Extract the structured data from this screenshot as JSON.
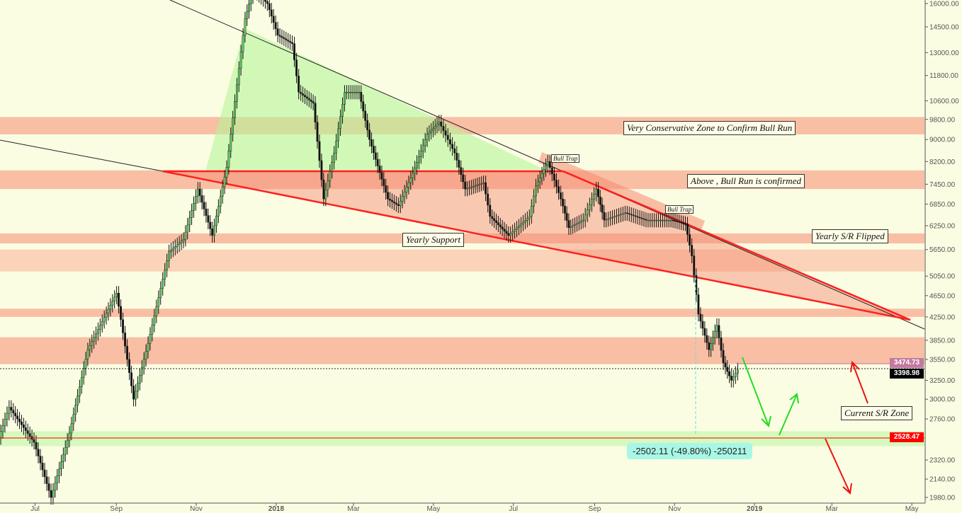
{
  "chart_data": {
    "type": "candlestick",
    "yscale": "log",
    "ylim": [
      1950,
      16500
    ],
    "xlim": [
      "2017-06-01",
      "2019-05-15"
    ],
    "y_ticks": [
      "16000.00",
      "14500.00",
      "13000.00",
      "11800.00",
      "10600.00",
      "9800.00",
      "9000.00",
      "8200.00",
      "7450.00",
      "6850.00",
      "6250.00",
      "5650.00",
      "5050.00",
      "4650.00",
      "4250.00",
      "3850.00",
      "3550.00",
      "3250.00",
      "3000.00",
      "2760.00",
      "2320.00",
      "2140.00",
      "1980.00"
    ],
    "x_ticks": [
      {
        "label": "Jul",
        "date": "2017-07-01"
      },
      {
        "label": "Sep",
        "date": "2017-09-01"
      },
      {
        "label": "Nov",
        "date": "2017-11-01"
      },
      {
        "label": "2018",
        "date": "2018-01-01"
      },
      {
        "label": "Mar",
        "date": "2018-03-01"
      },
      {
        "label": "May",
        "date": "2018-05-01"
      },
      {
        "label": "Jul",
        "date": "2018-07-01"
      },
      {
        "label": "Sep",
        "date": "2018-09-01"
      },
      {
        "label": "Nov",
        "date": "2018-11-01"
      },
      {
        "label": "2019",
        "date": "2019-01-01"
      },
      {
        "label": "Mar",
        "date": "2019-03-01"
      },
      {
        "label": "May",
        "date": "2019-05-01"
      }
    ],
    "price": [
      [
        "2017-06-04",
        2550
      ],
      [
        "2017-06-12",
        2900
      ],
      [
        "2017-07-01",
        2500
      ],
      [
        "2017-07-14",
        1980
      ],
      [
        "2017-07-28",
        2600
      ],
      [
        "2017-08-11",
        3700
      ],
      [
        "2017-09-02",
        4700
      ],
      [
        "2017-09-15",
        3000
      ],
      [
        "2017-09-26",
        3800
      ],
      [
        "2017-10-12",
        5600
      ],
      [
        "2017-10-23",
        5900
      ],
      [
        "2017-11-03",
        7300
      ],
      [
        "2017-11-14",
        6000
      ],
      [
        "2017-11-25",
        8000
      ],
      [
        "2017-12-09",
        15000
      ],
      [
        "2017-12-15",
        17000
      ],
      [
        "2017-12-26",
        16000
      ],
      [
        "2018-01-03",
        14000
      ],
      [
        "2018-01-14",
        13500
      ],
      [
        "2018-01-19",
        11000
      ],
      [
        "2018-01-30",
        10500
      ],
      [
        "2018-02-07",
        7000
      ],
      [
        "2018-02-15",
        8500
      ],
      [
        "2018-02-23",
        11000
      ],
      [
        "2018-03-06",
        11000
      ],
      [
        "2018-03-14",
        9000
      ],
      [
        "2018-03-28",
        7000
      ],
      [
        "2018-04-05",
        6800
      ],
      [
        "2018-04-16",
        7800
      ],
      [
        "2018-04-27",
        9200
      ],
      [
        "2018-05-06",
        9700
      ],
      [
        "2018-05-18",
        8500
      ],
      [
        "2018-05-26",
        7300
      ],
      [
        "2018-06-09",
        7500
      ],
      [
        "2018-06-14",
        6500
      ],
      [
        "2018-06-28",
        6000
      ],
      [
        "2018-07-14",
        6500
      ],
      [
        "2018-07-19",
        7400
      ],
      [
        "2018-07-28",
        8200
      ],
      [
        "2018-08-07",
        7000
      ],
      [
        "2018-08-13",
        6200
      ],
      [
        "2018-08-24",
        6400
      ],
      [
        "2018-09-03",
        7300
      ],
      [
        "2018-09-09",
        6400
      ],
      [
        "2018-09-25",
        6600
      ],
      [
        "2018-10-11",
        6400
      ],
      [
        "2018-10-30",
        6400
      ],
      [
        "2018-11-10",
        6300
      ],
      [
        "2018-11-15",
        5500
      ],
      [
        "2018-11-20",
        4300
      ],
      [
        "2018-11-28",
        3700
      ],
      [
        "2018-12-04",
        4100
      ],
      [
        "2018-12-09",
        3500
      ],
      [
        "2018-12-15",
        3250
      ],
      [
        "2018-12-20",
        3398.98
      ]
    ],
    "zones": [
      {
        "from": 9200,
        "to": 9900,
        "color": "#f7a98f"
      },
      {
        "from": 7300,
        "to": 7900,
        "color": "#f7a98f"
      },
      {
        "from": 5800,
        "to": 6050,
        "color": "#f7a98f"
      },
      {
        "from": 5150,
        "to": 5650,
        "color": "#f9c4aa"
      },
      {
        "from": 4250,
        "to": 4400,
        "color": "#f7a98f"
      },
      {
        "from": 3480,
        "to": 3900,
        "color": "#f7a98f"
      },
      {
        "from": 2460,
        "to": 2620,
        "color": "#c9f7b0"
      }
    ],
    "price_labels": [
      {
        "value": "3474.73",
        "color": "#c27ba0"
      },
      {
        "value": "3398.98",
        "color": "#000000"
      },
      {
        "value": "2528.47",
        "color": "#ff0000"
      }
    ],
    "annotations": {
      "conservative": "Very Conservative Zone to Confirm Bull Run",
      "bull_run": "Above , Bull Run is confirmed",
      "yearly_sr": "Yearly S/R Flipped",
      "yearly_support": "Yearly Support",
      "bull_trap_1": "Bull Trap",
      "bull_trap_2": "Bull Trap",
      "current_sr": "Current S/R Zone"
    },
    "measure": "-2502.11 (-49.80%) -250211",
    "colors": {
      "up": "#5ec95e",
      "down": "#111111",
      "background": "#fbfde3"
    }
  }
}
